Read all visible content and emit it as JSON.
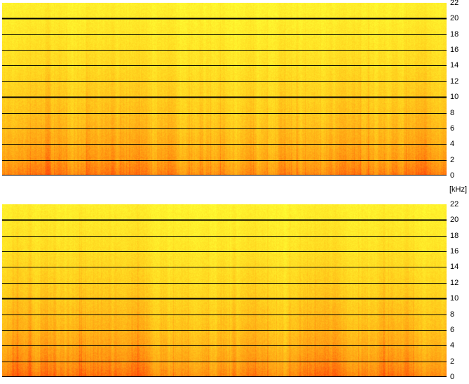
{
  "unit_label": "[kHz]",
  "chart_data": [
    {
      "type": "heatmap",
      "name": "",
      "title": "",
      "xlabel": "",
      "ylabel": "",
      "ylim": [
        0,
        22
      ],
      "y_ticks": [
        0,
        2,
        4,
        6,
        8,
        10,
        12,
        14,
        16,
        18,
        20,
        22
      ],
      "major_gridlines": [
        10,
        20
      ],
      "grid": true,
      "colormap": [
        "#ffff33",
        "#ffd21e",
        "#ff9a12",
        "#ff4a08"
      ],
      "seed": 7
    },
    {
      "type": "heatmap",
      "name": "",
      "title": "",
      "xlabel": "",
      "ylabel": "",
      "ylim": [
        0,
        22
      ],
      "y_ticks": [
        0,
        2,
        4,
        6,
        8,
        10,
        12,
        14,
        16,
        18,
        20,
        22
      ],
      "major_gridlines": [
        10,
        20
      ],
      "grid": true,
      "colormap": [
        "#ffff33",
        "#ffd21e",
        "#ff9a12",
        "#ff4a08"
      ],
      "seed": 13
    }
  ]
}
